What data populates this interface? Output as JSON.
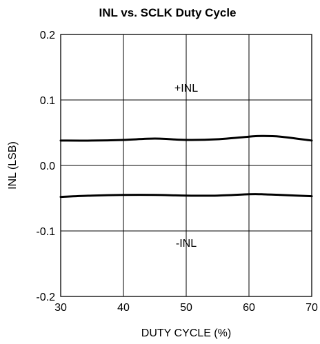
{
  "chart_data": {
    "type": "line",
    "title": "INL vs. SCLK Duty Cycle",
    "xlabel": "DUTY CYCLE (%)",
    "ylabel": "INL (LSB)",
    "xlim": [
      30,
      70
    ],
    "ylim": [
      -0.2,
      0.2
    ],
    "grid": true,
    "x_ticks": [
      "30",
      "40",
      "50",
      "60",
      "70"
    ],
    "y_ticks": [
      "-0.2",
      "-0.1",
      "0.0",
      "0.1",
      "0.2"
    ],
    "annotations": [
      "+INL",
      "-INL"
    ],
    "series": [
      {
        "name": "+INL",
        "x": [
          30,
          35,
          40,
          45,
          50,
          55,
          60,
          62,
          65,
          70
        ],
        "y": [
          0.038,
          0.038,
          0.039,
          0.041,
          0.039,
          0.04,
          0.044,
          0.045,
          0.044,
          0.038
        ]
      },
      {
        "name": "-INL",
        "x": [
          30,
          35,
          40,
          45,
          50,
          55,
          60,
          62,
          65,
          70
        ],
        "y": [
          -0.048,
          -0.046,
          -0.045,
          -0.045,
          -0.046,
          -0.046,
          -0.044,
          -0.044,
          -0.045,
          -0.047
        ]
      }
    ],
    "colors": {
      "line": "#000000",
      "grid": "#000000",
      "frame": "#000000"
    }
  }
}
